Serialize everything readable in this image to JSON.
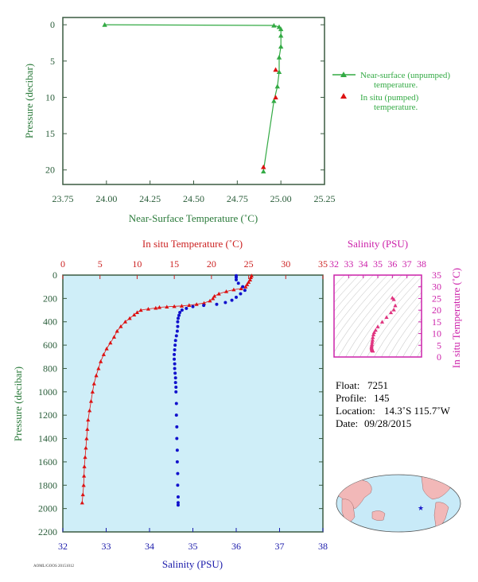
{
  "top_chart": {
    "xlabel": "Near-Surface Temperature (˚C)",
    "ylabel": "Pressure (decibar)",
    "xticks": [
      "23.75",
      "24.00",
      "24.25",
      "24.50",
      "24.75",
      "25.00",
      "25.25"
    ],
    "yticks": [
      "0",
      "5",
      "10",
      "15",
      "20"
    ],
    "legend": [
      {
        "label_line1": "Near-surface (unpumped)",
        "label_line2": "temperature.",
        "color": "#33aa44"
      },
      {
        "label_line1": "In situ (pumped)",
        "label_line2": "temperature.",
        "color": "#dd1111"
      }
    ]
  },
  "main_chart": {
    "top_axis_label": "In situ Temperature (˚C)",
    "bottom_axis_label": "Salinity (PSU)",
    "ylabel": "Pressure (decibar)",
    "temp_ticks": [
      "0",
      "5",
      "10",
      "15",
      "20",
      "25",
      "30",
      "35"
    ],
    "sal_ticks": [
      "32",
      "33",
      "34",
      "35",
      "36",
      "37",
      "38"
    ],
    "p_ticks": [
      "0",
      "200",
      "400",
      "600",
      "800",
      "1000",
      "1200",
      "1400",
      "1600",
      "1800",
      "2000",
      "2200"
    ],
    "footer_code": "AOML/GOOS 20151012"
  },
  "ts_chart": {
    "top_label": "Salinity (PSU)",
    "side_label": "In situ Temperature (˚C)",
    "sal_ticks": [
      "32",
      "33",
      "34",
      "35",
      "36",
      "37",
      "38"
    ],
    "temp_ticks": [
      "0",
      "5",
      "10",
      "15",
      "20",
      "25",
      "30",
      "35"
    ]
  },
  "info": {
    "float_label": "Float:",
    "float_value": "7251",
    "profile_label": "Profile:",
    "profile_value": "145",
    "location_label": "Location:",
    "location_value": "14.3˚S  115.7˚W",
    "date_label": "Date:",
    "date_value": "09/28/2015"
  },
  "colors": {
    "axis_green": "#2a6a3a",
    "temperature": "#dd1111",
    "salinity": "#1111cc",
    "ts": "#e0337f",
    "plot_bg": "#cfeef8",
    "ts_frame": "#cc22aa"
  },
  "chart_data": [
    {
      "type": "line",
      "title": "",
      "xlabel": "Near-Surface Temperature (˚C)",
      "ylabel": "Pressure (decibar)",
      "xlim": [
        23.75,
        25.25
      ],
      "ylim": [
        22,
        -1
      ],
      "series": [
        {
          "name": "Near-surface (unpumped) temperature.",
          "marker": "triangle",
          "x": [
            23.99,
            24.96,
            24.99,
            25.0,
            25.0,
            25.0,
            24.99,
            24.99,
            24.98,
            24.96,
            24.9
          ],
          "y": [
            0,
            0.1,
            0.3,
            0.6,
            1.5,
            3.0,
            4.5,
            6.5,
            8.5,
            10.5,
            20.2
          ]
        },
        {
          "name": "In situ (pumped) temperature.",
          "marker": "triangle",
          "x": [
            24.97,
            24.97,
            24.9
          ],
          "y": [
            6.2,
            10.0,
            19.6
          ]
        }
      ]
    },
    {
      "type": "scatter",
      "title": "",
      "ylabel": "Pressure (decibar)",
      "ylim": [
        2200,
        0
      ],
      "series": [
        {
          "name": "In situ Temperature (˚C)",
          "axis": "top",
          "xlim": [
            0,
            35
          ],
          "marker": "triangle",
          "x": [
            25.4,
            25.3,
            25.2,
            25.0,
            24.8,
            24.6,
            24.0,
            23.0,
            22.0,
            21.0,
            20.4,
            20.2,
            19.8,
            19.0,
            18.0,
            17.0,
            16.0,
            15.0,
            14.0,
            13.0,
            12.5,
            11.5,
            10.5,
            10.0,
            9.6,
            9.0,
            8.4,
            7.8,
            7.3,
            6.9,
            6.4,
            5.9,
            5.5,
            5.1,
            4.8,
            4.5,
            4.2,
            4.0,
            3.8,
            3.6,
            3.4,
            3.3,
            3.2,
            3.1,
            3.0,
            2.9,
            2.85,
            2.8,
            2.7,
            2.6
          ],
          "y": [
            5,
            20,
            40,
            60,
            80,
            100,
            115,
            125,
            140,
            160,
            180,
            200,
            220,
            240,
            250,
            258,
            264,
            268,
            272,
            276,
            282,
            290,
            300,
            320,
            340,
            370,
            400,
            440,
            480,
            530,
            580,
            630,
            680,
            740,
            800,
            860,
            930,
            1000,
            1080,
            1160,
            1240,
            1320,
            1400,
            1480,
            1560,
            1640,
            1720,
            1800,
            1880,
            1950
          ]
        },
        {
          "name": "Salinity (PSU)",
          "axis": "bottom",
          "xlim": [
            32,
            38
          ],
          "marker": "dot",
          "x": [
            36.0,
            36.0,
            36.0,
            36.05,
            36.15,
            36.2,
            36.1,
            36.0,
            35.9,
            35.75,
            35.55,
            35.25,
            35.0,
            34.85,
            34.75,
            34.7,
            34.68,
            34.66,
            34.65,
            34.65,
            34.64,
            34.62,
            34.6,
            34.59,
            34.58,
            34.57,
            34.57,
            34.58,
            34.58,
            34.59,
            34.6,
            34.6,
            34.61,
            34.61,
            34.62,
            34.62,
            34.63,
            34.63,
            34.64,
            34.64,
            34.65,
            34.65,
            34.66,
            34.66,
            34.66
          ],
          "y": [
            5,
            20,
            40,
            70,
            100,
            130,
            160,
            190,
            215,
            235,
            250,
            260,
            270,
            285,
            300,
            320,
            345,
            370,
            400,
            440,
            480,
            520,
            560,
            600,
            640,
            680,
            720,
            760,
            800,
            840,
            880,
            920,
            960,
            1000,
            1100,
            1200,
            1300,
            1400,
            1500,
            1600,
            1700,
            1800,
            1900,
            1950,
            1970
          ]
        }
      ]
    },
    {
      "type": "scatter",
      "title": "",
      "xlabel": "Salinity (PSU)",
      "ylabel": "In situ Temperature (˚C)",
      "xlim": [
        32,
        38
      ],
      "ylim": [
        0,
        35
      ],
      "series": [
        {
          "name": "T-S profile",
          "x": [
            36.0,
            36.1,
            36.2,
            36.1,
            35.9,
            35.6,
            35.3,
            35.0,
            34.85,
            34.75,
            34.7,
            34.66,
            34.64,
            34.62,
            34.6,
            34.58,
            34.57,
            34.58,
            34.59,
            34.6,
            34.61,
            34.62,
            34.63,
            34.64,
            34.65,
            34.66
          ],
          "y": [
            25.3,
            24.6,
            22.0,
            20.2,
            19.0,
            17.0,
            15.0,
            13.0,
            11.5,
            10.5,
            9.6,
            8.4,
            7.3,
            6.4,
            5.5,
            4.8,
            4.2,
            3.8,
            3.5,
            3.3,
            3.1,
            3.0,
            2.9,
            2.8,
            2.7,
            2.6
          ]
        }
      ]
    }
  ]
}
